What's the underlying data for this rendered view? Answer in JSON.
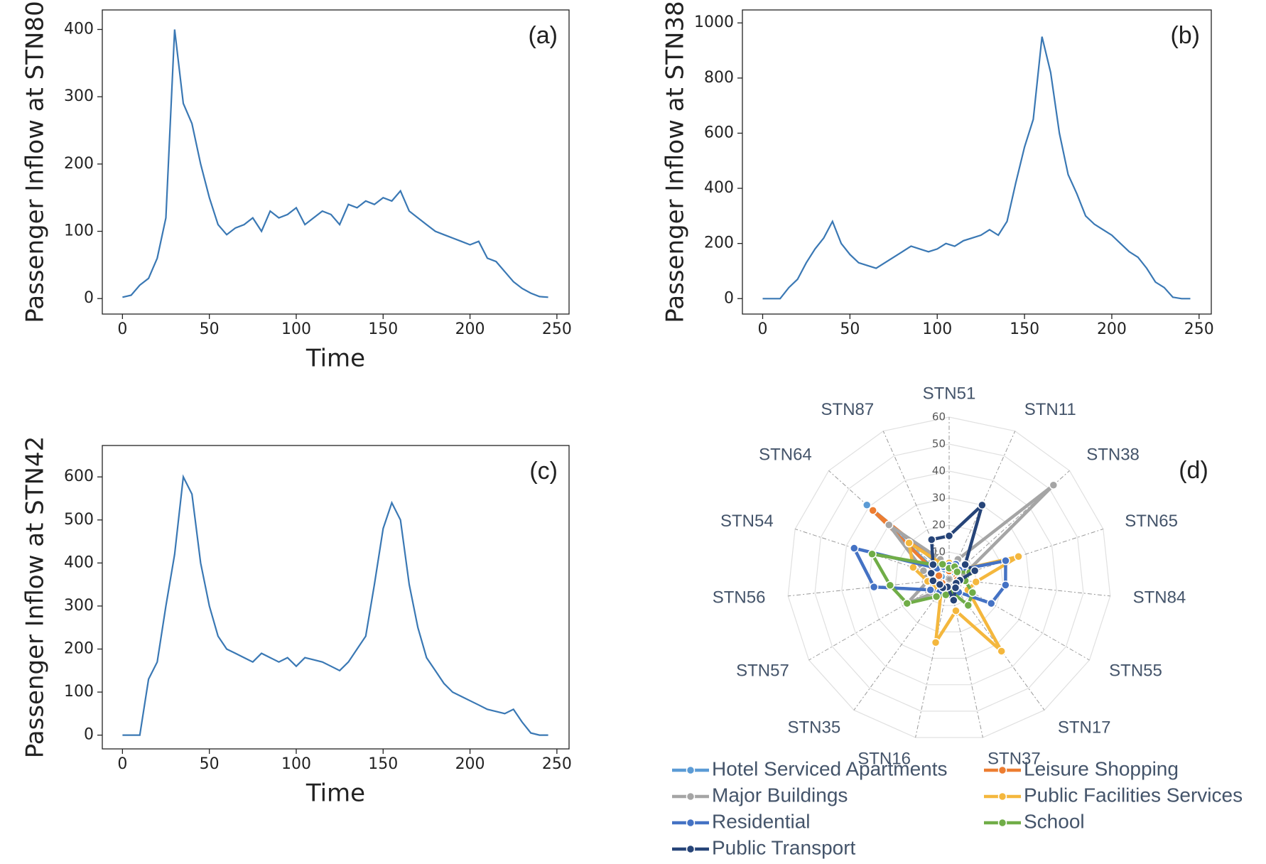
{
  "chart_data": [
    {
      "type": "line",
      "label": "(a)",
      "x_label": "Time",
      "y_label": "Passenger Inflow at STN80",
      "color": "#3a78b4",
      "x": [
        0,
        5,
        10,
        15,
        20,
        25,
        30,
        35,
        40,
        45,
        50,
        55,
        60,
        65,
        70,
        75,
        80,
        85,
        90,
        95,
        100,
        105,
        110,
        115,
        120,
        125,
        130,
        135,
        140,
        145,
        150,
        155,
        160,
        165,
        170,
        175,
        180,
        185,
        190,
        195,
        200,
        205,
        210,
        215,
        220,
        225,
        230,
        235,
        240,
        245
      ],
      "values": [
        2,
        5,
        20,
        30,
        60,
        120,
        400,
        290,
        260,
        200,
        150,
        110,
        95,
        105,
        110,
        120,
        100,
        130,
        120,
        125,
        135,
        110,
        120,
        130,
        125,
        110,
        140,
        135,
        145,
        140,
        150,
        145,
        160,
        130,
        120,
        110,
        100,
        95,
        90,
        85,
        80,
        85,
        60,
        55,
        40,
        25,
        15,
        8,
        3,
        2
      ],
      "xlim": [
        -11.6,
        257
      ],
      "ylim": [
        -23,
        429
      ],
      "xticks": [
        0,
        50,
        100,
        150,
        200,
        250
      ],
      "yticks": [
        0,
        100,
        200,
        300,
        400
      ]
    },
    {
      "type": "line",
      "label": "(b)",
      "y_label": "Passenger Inflow at STN38",
      "color": "#3a78b4",
      "x": [
        0,
        5,
        10,
        15,
        20,
        25,
        30,
        35,
        40,
        45,
        50,
        55,
        60,
        65,
        70,
        75,
        80,
        85,
        90,
        95,
        100,
        105,
        110,
        115,
        120,
        125,
        130,
        135,
        140,
        145,
        150,
        155,
        160,
        165,
        170,
        175,
        180,
        185,
        190,
        195,
        200,
        205,
        210,
        215,
        220,
        225,
        230,
        235,
        240,
        245
      ],
      "values": [
        0,
        0,
        0,
        40,
        70,
        130,
        180,
        220,
        280,
        200,
        160,
        130,
        120,
        110,
        130,
        150,
        170,
        190,
        180,
        170,
        180,
        200,
        190,
        210,
        220,
        230,
        250,
        230,
        280,
        420,
        550,
        650,
        950,
        820,
        600,
        450,
        380,
        300,
        270,
        250,
        230,
        200,
        170,
        150,
        110,
        60,
        40,
        5,
        0,
        0
      ],
      "xlim": [
        -11.6,
        257
      ],
      "ylim": [
        -56,
        1047
      ],
      "xticks": [
        0,
        50,
        100,
        150,
        200,
        250
      ],
      "yticks": [
        0,
        200,
        400,
        600,
        800,
        1000
      ]
    },
    {
      "type": "line",
      "label": "(c)",
      "x_label": "Time",
      "y_label": "Passenger Inflow at STN42",
      "color": "#3a78b4",
      "x": [
        0,
        5,
        10,
        15,
        20,
        25,
        30,
        35,
        40,
        45,
        50,
        55,
        60,
        65,
        70,
        75,
        80,
        85,
        90,
        95,
        100,
        105,
        110,
        115,
        120,
        125,
        130,
        135,
        140,
        145,
        150,
        155,
        160,
        165,
        170,
        175,
        180,
        185,
        190,
        195,
        200,
        205,
        210,
        215,
        220,
        225,
        230,
        235,
        240,
        245
      ],
      "values": [
        0,
        0,
        0,
        130,
        170,
        300,
        420,
        600,
        560,
        400,
        300,
        230,
        200,
        190,
        180,
        170,
        190,
        180,
        170,
        180,
        160,
        180,
        175,
        170,
        160,
        150,
        170,
        200,
        230,
        350,
        480,
        540,
        500,
        350,
        250,
        180,
        150,
        120,
        100,
        90,
        80,
        70,
        60,
        55,
        50,
        60,
        30,
        5,
        0,
        0
      ],
      "xlim": [
        -11.6,
        257
      ],
      "ylim": [
        -32,
        673
      ],
      "xticks": [
        0,
        50,
        100,
        150,
        200,
        250
      ],
      "yticks": [
        0,
        100,
        200,
        300,
        400,
        500,
        600
      ]
    },
    {
      "type": "radar",
      "label": "(d)",
      "categories": [
        "STN51",
        "STN11",
        "STN38",
        "STN65",
        "STN84",
        "STN55",
        "STN17",
        "STN37",
        "STN16",
        "STN35",
        "STN57",
        "STN56",
        "STN54",
        "STN64",
        "STN87"
      ],
      "rlim": [
        0,
        60
      ],
      "rticks": [
        10,
        20,
        30,
        40,
        50,
        60
      ],
      "series": [
        {
          "name": "Hotel Serviced Apartments",
          "color": "#5b9bd5",
          "values": [
            3,
            3,
            3,
            3,
            3,
            3,
            3,
            3,
            3,
            3,
            3,
            3,
            3,
            41,
            4
          ]
        },
        {
          "name": "Leisure Shopping",
          "color": "#ed7d31",
          "values": [
            3,
            4,
            4,
            3,
            3,
            3,
            3,
            3,
            3,
            3,
            3,
            4,
            4,
            38,
            5
          ]
        },
        {
          "name": "Major Buildings",
          "color": "#a5a5a5",
          "values": [
            5,
            8,
            52,
            6,
            4,
            3,
            4,
            3,
            3,
            5,
            18,
            8,
            10,
            30,
            8
          ]
        },
        {
          "name": "Public Facilities Services",
          "color": "#f4b73d",
          "values": [
            6,
            6,
            5,
            27,
            10,
            8,
            33,
            12,
            24,
            5,
            6,
            8,
            14,
            20,
            6
          ]
        },
        {
          "name": "Residential",
          "color": "#4472c4",
          "values": [
            5,
            6,
            5,
            22,
            21,
            18,
            6,
            8,
            5,
            6,
            8,
            28,
            37,
            6,
            5
          ]
        },
        {
          "name": "School",
          "color": "#70ad47",
          "values": [
            4,
            5,
            4,
            8,
            6,
            10,
            12,
            5,
            6,
            8,
            18,
            22,
            30,
            8,
            6
          ]
        },
        {
          "name": "Public Transport",
          "color": "#264478",
          "values": [
            16,
            30,
            8,
            10,
            4,
            3,
            4,
            8,
            3,
            4,
            4,
            6,
            7,
            8,
            16
          ]
        }
      ]
    }
  ]
}
